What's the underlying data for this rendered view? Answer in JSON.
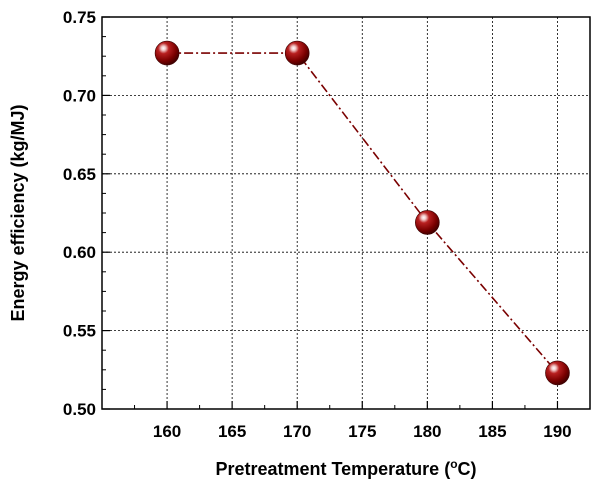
{
  "chart_data": {
    "type": "line",
    "xlabel": "Pretreatment Temperature (",
    "xlabel_sup": "o",
    "xlabel_suffix": "C)",
    "ylabel": "Energy efficiency (kg/MJ)",
    "xlim": [
      155,
      192.5
    ],
    "ylim": [
      0.5,
      0.75
    ],
    "x_ticks": [
      "160",
      "165",
      "170",
      "175",
      "180",
      "185",
      "190"
    ],
    "y_ticks": [
      "0.50",
      "0.55",
      "0.60",
      "0.65",
      "0.70",
      "0.75"
    ],
    "grid": true,
    "series": [
      {
        "x": [
          160,
          170,
          180,
          190
        ],
        "y": [
          0.727,
          0.727,
          0.619,
          0.523
        ],
        "line_style": "dash-dot",
        "color": "#7a0000",
        "marker": "sphere"
      }
    ]
  }
}
